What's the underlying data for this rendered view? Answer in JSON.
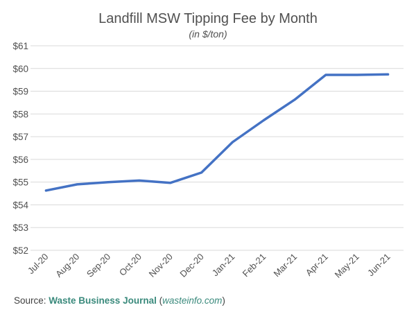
{
  "chart_data": {
    "type": "line",
    "title": "Landfill MSW Tipping Fee by Month",
    "subtitle": "(in $/ton)",
    "categories": [
      "Jul-20",
      "Aug-20",
      "Sep-20",
      "Oct-20",
      "Nov-20",
      "Dec-20",
      "Jan-21",
      "Feb-21",
      "Mar-21",
      "Apr-21",
      "May-21",
      "Jun-21"
    ],
    "series": [
      {
        "values": [
          54.63,
          54.9,
          55.0,
          55.07,
          54.97,
          55.42,
          56.76,
          57.72,
          58.63,
          59.72,
          59.72,
          59.74
        ]
      }
    ],
    "ylim": [
      52,
      61
    ],
    "yticks": [
      52,
      53,
      54,
      55,
      56,
      57,
      58,
      59,
      60,
      61
    ],
    "ytick_labels": [
      "$52",
      "$53",
      "$54",
      "$55",
      "$56",
      "$57",
      "$58",
      "$59",
      "$60",
      "$61"
    ],
    "grid": true,
    "line_color": "#4472c4",
    "grid_color": "#d9d9d9"
  },
  "source": {
    "prefix": "Source: ",
    "name": "Waste Business Journal",
    "open_paren": " (",
    "site": "wasteinfo.com",
    "close_paren": ")"
  }
}
